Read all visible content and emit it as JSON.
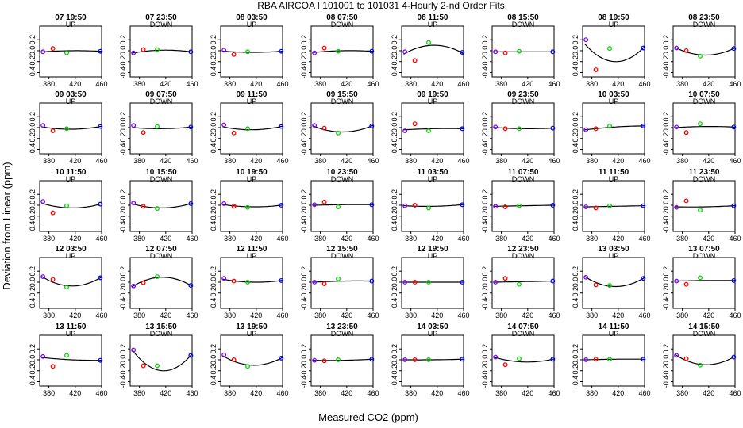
{
  "page": {
    "title": "RBA   AIRCOA I   101001 to 101031   4-Hourly 2-nd Order Fits",
    "xlabel": "Measured CO2 (ppm)",
    "ylabel": "Deviation from Linear (ppm)"
  },
  "chart_data": {
    "type": "scatter",
    "layout": "5 rows x 8 columns small multiples",
    "xlim": [
      366,
      460
    ],
    "ylim": [
      -0.48,
      0.45
    ],
    "xticks": [
      380,
      420,
      460
    ],
    "yticks": [
      -0.4,
      -0.2,
      0.0,
      0.2
    ],
    "ytick_labels": [
      "-0.4",
      "-0.2",
      "0.0",
      "0.2"
    ],
    "grid": false,
    "standards_x": [
      371,
      386,
      407,
      458
    ],
    "standard_colors": [
      "#8000ff",
      "#ff0000",
      "#00d000",
      "#0000ff"
    ],
    "panels": [
      {
        "title": "07 19:50",
        "mode": "UP",
        "y": [
          -0.02,
          0.04,
          -0.04,
          -0.01
        ],
        "fit": [
          -0.02,
          0.0,
          -0.01
        ]
      },
      {
        "title": "07 23:50",
        "mode": "DOWN",
        "y": [
          -0.04,
          0.02,
          0.02,
          -0.02
        ],
        "fit": [
          -0.04,
          0.01,
          -0.02
        ]
      },
      {
        "title": "08 03:50",
        "mode": "UP",
        "y": [
          0.01,
          -0.07,
          -0.02,
          -0.01
        ],
        "fit": [
          -0.01,
          -0.03,
          -0.01
        ]
      },
      {
        "title": "08 07:50",
        "mode": "DOWN",
        "y": [
          -0.04,
          0.05,
          -0.01,
          -0.01
        ],
        "fit": [
          -0.03,
          0.0,
          -0.01
        ]
      },
      {
        "title": "08 11:50",
        "mode": "UP",
        "y": [
          -0.02,
          -0.18,
          0.15,
          -0.03
        ],
        "fit": [
          -0.05,
          0.1,
          -0.04
        ]
      },
      {
        "title": "08 15:50",
        "mode": "DOWN",
        "y": [
          -0.02,
          -0.04,
          -0.01,
          -0.02
        ],
        "fit": [
          -0.02,
          -0.02,
          -0.02
        ]
      },
      {
        "title": "08 19:50",
        "mode": "UP",
        "y": [
          0.2,
          -0.35,
          0.04,
          0.05
        ],
        "fit": [
          0.1,
          -0.2,
          0.05
        ]
      },
      {
        "title": "08 23:50",
        "mode": "DOWN",
        "y": [
          0.05,
          0.0,
          -0.1,
          0.04
        ],
        "fit": [
          0.05,
          -0.08,
          0.04
        ]
      },
      {
        "title": "09 03:50",
        "mode": "UP",
        "y": [
          0.04,
          -0.06,
          -0.02,
          0.02
        ],
        "fit": [
          0.01,
          -0.03,
          0.02
        ]
      },
      {
        "title": "09 07:50",
        "mode": "DOWN",
        "y": [
          0.04,
          -0.09,
          0.02,
          0.01
        ],
        "fit": [
          0.0,
          -0.02,
          0.01
        ]
      },
      {
        "title": "09 11:50",
        "mode": "UP",
        "y": [
          0.05,
          -0.1,
          -0.02,
          0.02
        ],
        "fit": [
          0.01,
          -0.04,
          0.02
        ]
      },
      {
        "title": "09 15:50",
        "mode": "DOWN",
        "y": [
          0.04,
          -0.01,
          -0.1,
          0.03
        ],
        "fit": [
          0.02,
          -0.08,
          0.03
        ]
      },
      {
        "title": "09 19:50",
        "mode": "UP",
        "y": [
          -0.06,
          0.07,
          -0.06,
          -0.02
        ],
        "fit": [
          -0.04,
          -0.02,
          -0.02
        ]
      },
      {
        "title": "09 23:50",
        "mode": "DOWN",
        "y": [
          0.01,
          -0.02,
          -0.02,
          -0.01
        ],
        "fit": [
          0.0,
          -0.02,
          -0.01
        ]
      },
      {
        "title": "10 03:50",
        "mode": "UP",
        "y": [
          -0.04,
          -0.02,
          0.03,
          0.03
        ],
        "fit": [
          -0.04,
          0.01,
          0.03
        ]
      },
      {
        "title": "10 07:50",
        "mode": "DOWN",
        "y": [
          0.01,
          -0.09,
          0.07,
          0.01
        ],
        "fit": [
          0.0,
          0.02,
          0.01
        ]
      },
      {
        "title": "10 11:50",
        "mode": "UP",
        "y": [
          0.07,
          -0.14,
          -0.01,
          0.02
        ],
        "fit": [
          0.03,
          -0.05,
          0.02
        ]
      },
      {
        "title": "10 15:50",
        "mode": "DOWN",
        "y": [
          0.04,
          -0.02,
          -0.06,
          0.03
        ],
        "fit": [
          0.02,
          -0.05,
          0.03
        ]
      },
      {
        "title": "10 19:50",
        "mode": "UP",
        "y": [
          0.03,
          -0.02,
          -0.04,
          0.0
        ],
        "fit": [
          0.01,
          -0.03,
          0.0
        ]
      },
      {
        "title": "10 23:50",
        "mode": "DOWN",
        "y": [
          0.01,
          0.06,
          -0.03,
          0.01
        ],
        "fit": [
          0.0,
          0.01,
          0.01
        ]
      },
      {
        "title": "11 03:50",
        "mode": "UP",
        "y": [
          -0.01,
          0.0,
          -0.05,
          0.01
        ],
        "fit": [
          -0.01,
          -0.02,
          0.01
        ]
      },
      {
        "title": "11 07:50",
        "mode": "DOWN",
        "y": [
          -0.02,
          -0.03,
          -0.01,
          0.0
        ],
        "fit": [
          -0.02,
          -0.01,
          0.0
        ]
      },
      {
        "title": "11 11:50",
        "mode": "UP",
        "y": [
          -0.03,
          -0.05,
          -0.01,
          -0.01
        ],
        "fit": [
          -0.03,
          -0.02,
          -0.01
        ]
      },
      {
        "title": "11 23:50",
        "mode": "DOWN",
        "y": [
          -0.04,
          0.08,
          -0.09,
          -0.01
        ],
        "fit": [
          -0.03,
          -0.03,
          -0.01
        ]
      },
      {
        "title": "12 03:50",
        "mode": "UP",
        "y": [
          0.1,
          0.05,
          -0.09,
          0.08
        ],
        "fit": [
          0.09,
          -0.07,
          0.08
        ]
      },
      {
        "title": "12 07:50",
        "mode": "DOWN",
        "y": [
          -0.07,
          -0.01,
          0.1,
          -0.06
        ],
        "fit": [
          -0.07,
          0.09,
          -0.06
        ]
      },
      {
        "title": "12 11:50",
        "mode": "UP",
        "y": [
          0.07,
          0.02,
          0.0,
          0.03
        ],
        "fit": [
          0.05,
          0.0,
          0.03
        ]
      },
      {
        "title": "12 15:50",
        "mode": "DOWN",
        "y": [
          0.0,
          -0.03,
          0.06,
          0.02
        ],
        "fit": [
          0.0,
          0.02,
          0.02
        ]
      },
      {
        "title": "12 19:50",
        "mode": "UP",
        "y": [
          0.0,
          0.0,
          0.0,
          0.0
        ],
        "fit": [
          0.0,
          0.0,
          0.0
        ]
      },
      {
        "title": "12 23:50",
        "mode": "DOWN",
        "y": [
          0.0,
          0.07,
          -0.04,
          0.02
        ],
        "fit": [
          0.0,
          0.01,
          0.02
        ]
      },
      {
        "title": "13 03:50",
        "mode": "UP",
        "y": [
          0.09,
          -0.05,
          -0.06,
          0.07
        ],
        "fit": [
          0.09,
          -0.08,
          0.07
        ]
      },
      {
        "title": "13 07:50",
        "mode": "DOWN",
        "y": [
          0.02,
          -0.04,
          0.08,
          0.03
        ],
        "fit": [
          0.02,
          0.03,
          0.03
        ]
      },
      {
        "title": "13 11:50",
        "mode": "UP",
        "y": [
          0.06,
          -0.12,
          0.08,
          -0.01
        ],
        "fit": [
          0.04,
          0.0,
          -0.01
        ]
      },
      {
        "title": "13 15:50",
        "mode": "DOWN",
        "y": [
          0.18,
          -0.11,
          -0.11,
          0.08
        ],
        "fit": [
          0.15,
          -0.2,
          0.08
        ]
      },
      {
        "title": "13 19:50",
        "mode": "UP",
        "y": [
          0.09,
          0.0,
          -0.12,
          0.03
        ],
        "fit": [
          0.06,
          -0.1,
          0.03
        ]
      },
      {
        "title": "13 23:50",
        "mode": "DOWN",
        "y": [
          -0.01,
          -0.02,
          0.0,
          0.01
        ],
        "fit": [
          -0.01,
          -0.01,
          0.01
        ]
      },
      {
        "title": "14 03:50",
        "mode": "UP",
        "y": [
          0.0,
          0.0,
          0.0,
          0.01
        ],
        "fit": [
          0.0,
          0.0,
          0.01
        ]
      },
      {
        "title": "14 07:50",
        "mode": "DOWN",
        "y": [
          0.05,
          -0.09,
          0.02,
          0.01
        ],
        "fit": [
          0.04,
          -0.04,
          0.01
        ]
      },
      {
        "title": "14 11:50",
        "mode": "UP",
        "y": [
          0.0,
          0.01,
          0.01,
          0.01
        ],
        "fit": [
          0.0,
          0.01,
          0.01
        ]
      },
      {
        "title": "14 15:50",
        "mode": "DOWN",
        "y": [
          0.08,
          0.02,
          -0.1,
          0.05
        ],
        "fit": [
          0.08,
          -0.09,
          0.05
        ]
      }
    ]
  }
}
